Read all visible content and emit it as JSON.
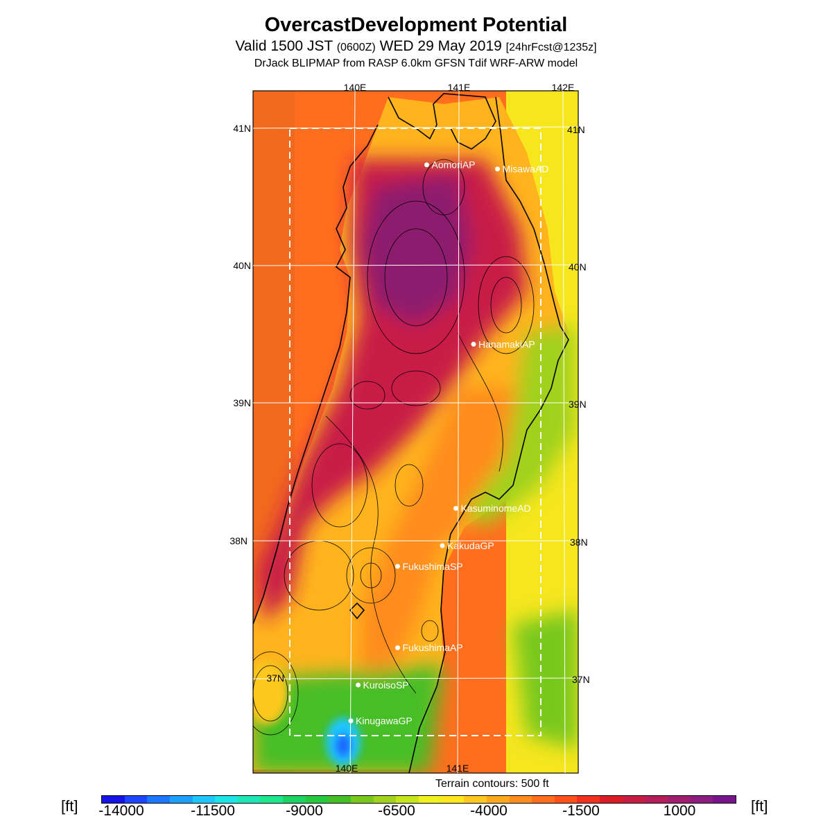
{
  "header": {
    "title": "OvercastDevelopment Potential",
    "valid_prefix": "Valid 1500 JST",
    "valid_zulu": "(0600Z)",
    "valid_date": "WED 29 May 2019",
    "valid_fcst": "[24hrFcst@1235z]",
    "model_line": "DrJack BLIPMAP from RASP 6.0km GFSN Tdif WRF-ARW model"
  },
  "map": {
    "lon_labels_top": [
      "140E",
      "141E",
      "142E"
    ],
    "lon_labels_bottom": [
      "140E",
      "141E"
    ],
    "lat_labels_left": [
      "41N",
      "40N",
      "39N",
      "38N",
      "37N"
    ],
    "lat_labels_right": [
      "41N",
      "40N",
      "39N",
      "38N",
      "37N"
    ],
    "stations": [
      {
        "name": "AomoriAP",
        "lon": 140.69,
        "lat": 40.73
      },
      {
        "name": "MisawaAD",
        "lon": 141.37,
        "lat": 40.7
      },
      {
        "name": "HanamakiAP",
        "lon": 141.14,
        "lat": 39.43
      },
      {
        "name": "KasuminomeAD",
        "lon": 140.97,
        "lat": 38.24
      },
      {
        "name": "KakudaGP",
        "lon": 140.84,
        "lat": 37.97
      },
      {
        "name": "FukushimaSP",
        "lon": 140.41,
        "lat": 37.82
      },
      {
        "name": "FukushimaAP",
        "lon": 140.41,
        "lat": 37.23
      },
      {
        "name": "KuroisoSP",
        "lon": 140.03,
        "lat": 36.96
      },
      {
        "name": "KinugawaGP",
        "lon": 139.96,
        "lat": 36.7
      }
    ],
    "terrain_note": "Terrain contours: 500 ft"
  },
  "colorbar": {
    "unit": "[ft]",
    "tick_labels": [
      "-14000",
      "-11500",
      "-9000",
      "-6500",
      "-4000",
      "-1500",
      "1000"
    ],
    "colors": [
      "#1414e6",
      "#1e46ff",
      "#1e78ff",
      "#1ea0ff",
      "#1ec8ff",
      "#1ee6e6",
      "#1ee6b4",
      "#1ee68c",
      "#1ed264",
      "#28c83c",
      "#46be28",
      "#78c81e",
      "#a0d21e",
      "#c8e61e",
      "#f0f01e",
      "#ffe61e",
      "#ffc81e",
      "#ffaa1e",
      "#ff8c1e",
      "#ff6e1e",
      "#ff501e",
      "#f0321e",
      "#dc1e28",
      "#c81e46",
      "#b41e5a",
      "#a01e6e",
      "#8c1e82",
      "#78148c"
    ]
  },
  "colors": {
    "land_base": "#ffc81e",
    "sea_west": "#ff6e1e",
    "sea_east": "#f0f01e",
    "ridge": "#c81e46",
    "peak": "#78148c",
    "low": "#1ee68c"
  }
}
